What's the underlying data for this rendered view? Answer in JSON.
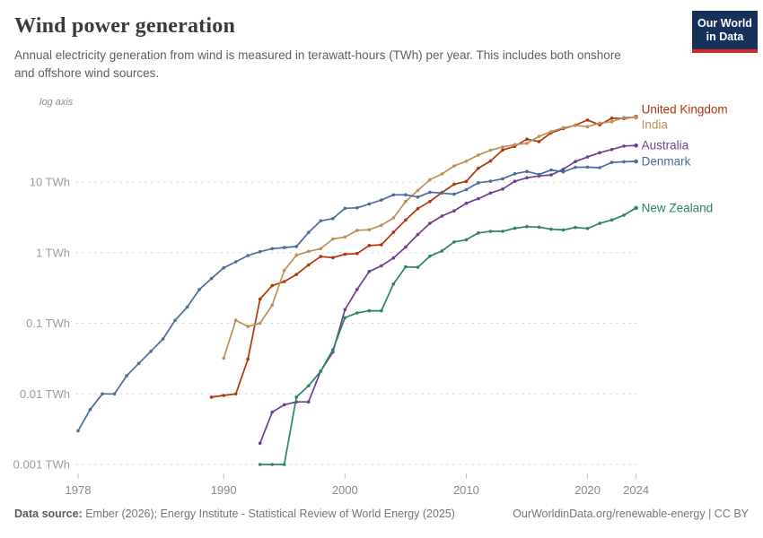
{
  "header": {
    "title": "Wind power generation",
    "subtitle": "Annual electricity generation from wind is measured in terawatt-hours (TWh) per year. This includes both onshore and offshore wind sources.",
    "logo": {
      "line1": "Our World",
      "line2": "in Data",
      "bg_color": "#16325c",
      "stripe_color": "#d42b20"
    }
  },
  "chart_data": {
    "type": "line",
    "y_scale": "log",
    "scale_note": "log axis",
    "unit": "TWh",
    "grid": true,
    "legend_position": "right-of-line-ends",
    "xlim": [
      1978,
      2024
    ],
    "ylim": [
      0.001,
      200
    ],
    "y_ticks": [
      {
        "label": "10 TWh",
        "value": 10
      },
      {
        "label": "1 TWh",
        "value": 1
      },
      {
        "label": "0.1 TWh",
        "value": 0.1
      },
      {
        "label": "0.01 TWh",
        "value": 0.01
      },
      {
        "label": "0.001 TWh",
        "value": 0.001
      }
    ],
    "x_ticks": [
      1978,
      1990,
      2000,
      2010,
      2020,
      2024
    ],
    "series": [
      {
        "name": "United Kingdom",
        "color": "#B13507",
        "start_year": 1989,
        "values": [
          0.009,
          0.0095,
          0.01,
          0.031,
          0.22,
          0.34,
          0.39,
          0.49,
          0.67,
          0.88,
          0.85,
          0.95,
          0.97,
          1.26,
          1.29,
          1.94,
          2.9,
          4.2,
          5.3,
          7.1,
          9.3,
          10.2,
          15.7,
          19.8,
          28.4,
          32.0,
          40.4,
          37.4,
          49.6,
          57.1,
          64.1,
          75.4,
          64.5,
          80.2,
          79.4,
          83.9
        ]
      },
      {
        "name": "India",
        "color": "#BC8E5A",
        "start_year": 1990,
        "values": [
          0.032,
          0.11,
          0.09,
          0.1,
          0.18,
          0.56,
          0.92,
          1.04,
          1.14,
          1.56,
          1.66,
          2.07,
          2.11,
          2.44,
          3.1,
          5.3,
          7.6,
          10.8,
          13.0,
          16.9,
          19.7,
          24.1,
          28.2,
          31.4,
          33.8,
          35.3,
          44.3,
          51.7,
          58.8,
          63.3,
          61.0,
          68.3,
          71.5,
          82.1,
          82.4
        ]
      },
      {
        "name": "Australia",
        "color": "#6D3E91",
        "start_year": 1993,
        "values": [
          0.002,
          0.0055,
          0.007,
          0.0077,
          0.0077,
          0.021,
          0.039,
          0.156,
          0.3,
          0.54,
          0.65,
          0.84,
          1.2,
          1.8,
          2.6,
          3.3,
          3.9,
          5.0,
          5.8,
          6.97,
          7.95,
          10.25,
          11.47,
          12.2,
          12.6,
          15.2,
          19.5,
          22.6,
          26.0,
          28.9,
          32.3,
          33.0
        ]
      },
      {
        "name": "Denmark",
        "color": "#4C6A9C",
        "start_year": 1978,
        "values": [
          0.003,
          0.006,
          0.01,
          0.01,
          0.018,
          0.027,
          0.04,
          0.06,
          0.11,
          0.17,
          0.3,
          0.43,
          0.61,
          0.74,
          0.91,
          1.03,
          1.14,
          1.18,
          1.22,
          1.93,
          2.82,
          3.03,
          4.24,
          4.31,
          4.88,
          5.56,
          6.58,
          6.61,
          6.11,
          7.17,
          6.98,
          6.72,
          7.81,
          9.77,
          10.27,
          11.12,
          13.08,
          14.13,
          12.78,
          14.78,
          13.9,
          16.15,
          16.27,
          15.97,
          18.97,
          19.38,
          19.6
        ]
      },
      {
        "name": "New Zealand",
        "color": "#2C8465",
        "start_year": 1993,
        "values": [
          0.001,
          0.001,
          0.001,
          0.009,
          0.013,
          0.021,
          0.042,
          0.12,
          0.14,
          0.15,
          0.15,
          0.36,
          0.63,
          0.62,
          0.89,
          1.06,
          1.42,
          1.52,
          1.9,
          2.0,
          2.0,
          2.21,
          2.34,
          2.3,
          2.15,
          2.1,
          2.27,
          2.2,
          2.6,
          2.9,
          3.4,
          4.3
        ]
      }
    ]
  },
  "footer": {
    "source_label": "Data source:",
    "source_text": " Ember (2026); Energy Institute - Statistical Review of World Energy (2025)",
    "link_text": "OurWorldinData.org/renewable-energy | CC BY"
  }
}
